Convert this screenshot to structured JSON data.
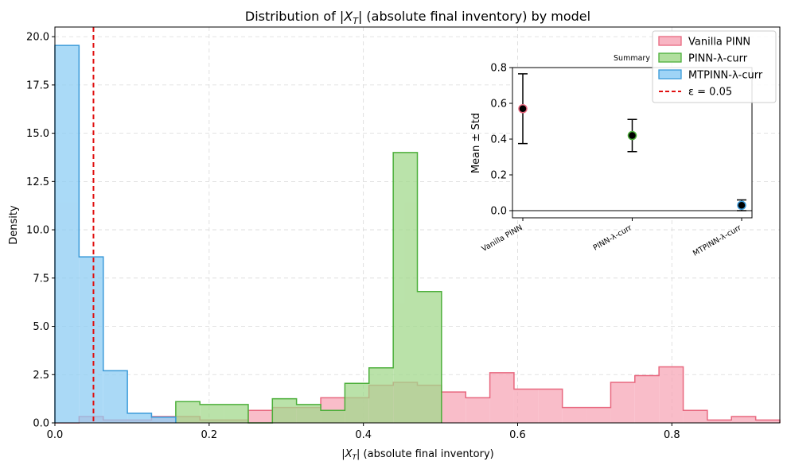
{
  "chart_data": [
    {
      "type": "histogram",
      "title": "Distribution of |X_T| (absolute final inventory) by model",
      "title_parts": {
        "pre": "Distribution of |",
        "var": "X",
        "sub": "T",
        "post": "| (absolute final inventory) by model"
      },
      "xlabel": "|X_T|  (absolute final inventory)",
      "xlabel_parts": {
        "pre": "|",
        "var": "X",
        "sub": "T",
        "post": "|  (absolute final inventory)"
      },
      "ylabel": "Density",
      "xlim": [
        0,
        0.94
      ],
      "ylim": [
        0,
        20.5
      ],
      "xticks": [
        0.0,
        0.2,
        0.4,
        0.6,
        0.8
      ],
      "xtick_labels": [
        "0.0",
        "0.2",
        "0.4",
        "0.6",
        "0.8"
      ],
      "yticks": [
        0.0,
        2.5,
        5.0,
        7.5,
        10.0,
        12.5,
        15.0,
        17.5,
        20.0
      ],
      "ytick_labels": [
        "0.0",
        "2.5",
        "5.0",
        "7.5",
        "10.0",
        "12.5",
        "15.0",
        "17.5",
        "20.0"
      ],
      "grid": true,
      "legend_position": "top-right",
      "series": [
        {
          "name": "Vanilla PINN",
          "fill": "#f7a8b8",
          "edge": "#e8687f",
          "bins": [
            0.0,
            0.0313,
            0.0627,
            0.094,
            0.1253,
            0.1567,
            0.188,
            0.2193,
            0.2507,
            0.282,
            0.3133,
            0.3447,
            0.376,
            0.4073,
            0.4387,
            0.47,
            0.5013,
            0.5327,
            0.564,
            0.5953,
            0.6267,
            0.658,
            0.6893,
            0.7207,
            0.752,
            0.7833,
            0.8147,
            0.846,
            0.8773,
            0.9087,
            0.94
          ],
          "values": [
            0.0,
            0.33,
            0.15,
            0.15,
            0.33,
            0.33,
            0.15,
            0.15,
            0.65,
            0.8,
            0.8,
            1.3,
            1.3,
            1.95,
            2.1,
            1.95,
            1.6,
            1.3,
            2.6,
            1.75,
            1.75,
            0.8,
            0.8,
            2.1,
            2.45,
            2.9,
            0.65,
            0.15,
            0.33,
            0.15
          ]
        },
        {
          "name": "PINN-λ-curr",
          "fill": "#a3d98d",
          "edge": "#4caf3a",
          "bins": [
            0.1567,
            0.188,
            0.2193,
            0.2507,
            0.282,
            0.3133,
            0.3447,
            0.376,
            0.4073,
            0.4387,
            0.47,
            0.5013
          ],
          "values": [
            1.1,
            0.95,
            0.95,
            0.0,
            1.25,
            0.95,
            0.65,
            2.05,
            2.85,
            14.0,
            6.8
          ]
        },
        {
          "name": "MTPINN-λ-curr",
          "fill": "#8ecdf4",
          "edge": "#3a9ad9",
          "bins": [
            0.0,
            0.0313,
            0.0627,
            0.094,
            0.1253,
            0.1567
          ],
          "values": [
            19.55,
            8.6,
            2.7,
            0.5,
            0.3
          ]
        }
      ],
      "threshold": {
        "name": "ε = 0.05",
        "x": 0.05,
        "color": "#e01010"
      }
    },
    {
      "type": "errorbar",
      "title": "Summary",
      "ylabel": "Mean ± Std",
      "categories": [
        "Vanilla PINN",
        "PINN-λ-curr",
        "MTPINN-λ-curr"
      ],
      "means": [
        0.57,
        0.42,
        0.03
      ],
      "stds": [
        0.195,
        0.09,
        0.03
      ],
      "marker_edges": [
        "#e8687f",
        "#4caf3a",
        "#3a9ad9"
      ],
      "ylim": [
        -0.04,
        0.8
      ],
      "yticks": [
        0.0,
        0.2,
        0.4,
        0.6,
        0.8
      ],
      "ytick_labels": [
        "0.0",
        "0.2",
        "0.4",
        "0.6",
        "0.8"
      ]
    }
  ]
}
